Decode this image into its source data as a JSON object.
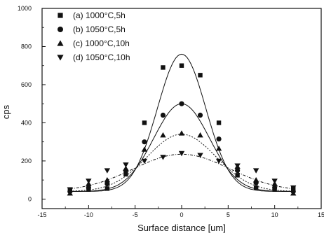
{
  "chart_data": {
    "type": "scatter",
    "title": "",
    "xlabel": "Surface distance [um]",
    "ylabel": "cps",
    "xlim": [
      -15,
      15
    ],
    "ylim": [
      -50,
      1000
    ],
    "xticks": [
      -15,
      -10,
      -5,
      0,
      5,
      10,
      15
    ],
    "yticks": [
      0,
      200,
      400,
      600,
      800,
      1000
    ],
    "grid": false,
    "legend_position": "top-left",
    "x": [
      -12,
      -10,
      -8,
      -6,
      -4,
      -2,
      0,
      2,
      4,
      6,
      8,
      10,
      12
    ],
    "series": [
      {
        "name": "(a) 1000°C,5h",
        "marker": "square",
        "values": [
          45,
          50,
          55,
          130,
          400,
          690,
          700,
          650,
          400,
          125,
          60,
          50,
          55
        ],
        "fit": {
          "kind": "gaussian",
          "baseline": 40,
          "amplitude": 720,
          "sigma": 2.6
        }
      },
      {
        "name": "(b) 1050°C,5h",
        "marker": "circle",
        "values": [
          40,
          60,
          80,
          150,
          300,
          440,
          500,
          440,
          315,
          150,
          85,
          60,
          40
        ],
        "fit": {
          "kind": "gaussian",
          "baseline": 40,
          "amplitude": 460,
          "sigma": 3.0
        }
      },
      {
        "name": "(c) 1000°C,10h",
        "marker": "triangle-up",
        "values": [
          30,
          80,
          100,
          160,
          260,
          335,
          345,
          335,
          265,
          170,
          100,
          80,
          30
        ],
        "fit": {
          "kind": "gaussian",
          "baseline": 40,
          "amplitude": 300,
          "sigma": 3.7
        }
      },
      {
        "name": "(d) 1050°C,10h",
        "marker": "triangle-down",
        "values": [
          50,
          95,
          150,
          180,
          200,
          220,
          240,
          230,
          200,
          175,
          150,
          95,
          60
        ],
        "fit": {
          "kind": "gaussian",
          "baseline": 40,
          "amplitude": 195,
          "sigma": 5.2
        }
      }
    ]
  }
}
